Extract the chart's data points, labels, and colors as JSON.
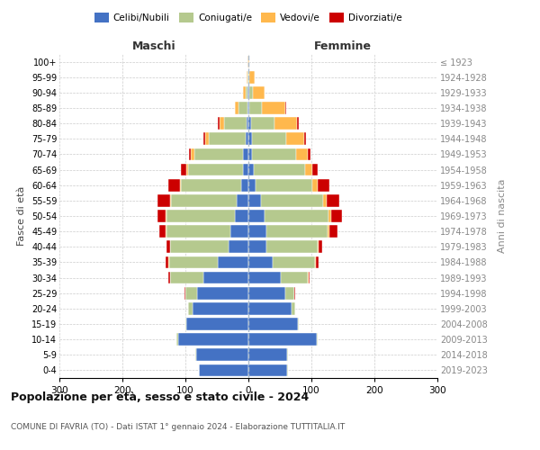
{
  "age_groups": [
    "0-4",
    "5-9",
    "10-14",
    "15-19",
    "20-24",
    "25-29",
    "30-34",
    "35-39",
    "40-44",
    "45-49",
    "50-54",
    "55-59",
    "60-64",
    "65-69",
    "70-74",
    "75-79",
    "80-84",
    "85-89",
    "90-94",
    "95-99",
    "100+"
  ],
  "birth_years": [
    "2019-2023",
    "2014-2018",
    "2009-2013",
    "2004-2008",
    "1999-2003",
    "1994-1998",
    "1989-1993",
    "1984-1988",
    "1979-1983",
    "1974-1978",
    "1969-1973",
    "1964-1968",
    "1959-1963",
    "1954-1958",
    "1949-1953",
    "1944-1948",
    "1939-1943",
    "1934-1938",
    "1929-1933",
    "1924-1928",
    "≤ 1923"
  ],
  "maschi": {
    "celibi": [
      78,
      83,
      112,
      98,
      88,
      82,
      72,
      48,
      32,
      28,
      22,
      18,
      12,
      8,
      8,
      5,
      3,
      1,
      1,
      0,
      0
    ],
    "coniugati": [
      1,
      1,
      2,
      2,
      8,
      18,
      52,
      78,
      92,
      102,
      108,
      105,
      95,
      88,
      78,
      58,
      35,
      15,
      4,
      1,
      0
    ],
    "vedovi": [
      0,
      0,
      0,
      0,
      0,
      0,
      1,
      1,
      1,
      2,
      2,
      2,
      2,
      3,
      5,
      6,
      8,
      6,
      4,
      2,
      1
    ],
    "divorziati": [
      0,
      0,
      0,
      0,
      0,
      1,
      2,
      5,
      5,
      10,
      12,
      20,
      18,
      8,
      4,
      3,
      2,
      0,
      0,
      0,
      0
    ]
  },
  "femmine": {
    "nubili": [
      62,
      62,
      108,
      78,
      68,
      58,
      52,
      38,
      28,
      28,
      25,
      20,
      12,
      8,
      6,
      5,
      4,
      2,
      1,
      0,
      0
    ],
    "coniugate": [
      1,
      1,
      2,
      2,
      6,
      15,
      42,
      68,
      82,
      98,
      102,
      98,
      90,
      82,
      70,
      55,
      38,
      20,
      6,
      2,
      0
    ],
    "vedove": [
      0,
      0,
      0,
      0,
      0,
      0,
      1,
      1,
      2,
      3,
      4,
      6,
      8,
      12,
      18,
      28,
      35,
      36,
      18,
      8,
      2
    ],
    "divorziate": [
      0,
      0,
      0,
      0,
      0,
      1,
      2,
      5,
      5,
      12,
      18,
      20,
      18,
      8,
      5,
      4,
      3,
      2,
      0,
      0,
      0
    ]
  },
  "colors": {
    "celibi_nubili": "#4472C4",
    "coniugati": "#B5C98E",
    "vedovi": "#FFB84D",
    "divorziati": "#CC0000"
  },
  "title": "Popolazione per età, sesso e stato civile - 2024",
  "subtitle": "COMUNE DI FAVRIA (TO) - Dati ISTAT 1° gennaio 2024 - Elaborazione TUTTITALIA.IT",
  "xlabel_maschi": "Maschi",
  "xlabel_femmine": "Femmine",
  "ylabel_left": "Fasce di età",
  "ylabel_right": "Anni di nascita",
  "xlim": 300,
  "background_color": "#ffffff",
  "grid_color": "#cccccc"
}
